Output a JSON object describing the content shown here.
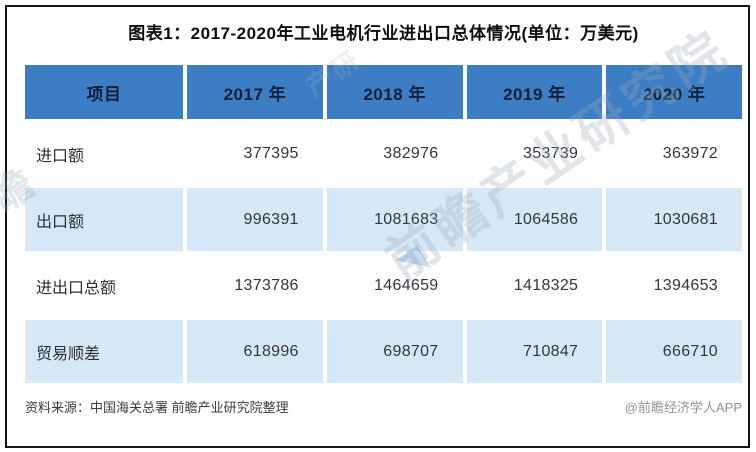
{
  "title": "图表1：2017-2020年工业电机行业进出口总体情况(单位：万美元)",
  "table": {
    "headers": [
      "项目",
      "2017 年",
      "2018 年",
      "2019 年",
      "2020 年"
    ],
    "rows": [
      {
        "label": "进口额",
        "values": [
          "377395",
          "382976",
          "353739",
          "363972"
        ]
      },
      {
        "label": "出口额",
        "values": [
          "996391",
          "1081683",
          "1064586",
          "1030681"
        ]
      },
      {
        "label": "进出口总额",
        "values": [
          "1373786",
          "1464659",
          "1418325",
          "1394653"
        ]
      },
      {
        "label": "贸易顺差",
        "values": [
          "618996",
          "698707",
          "710847",
          "666710"
        ]
      }
    ]
  },
  "footer": {
    "source": "资料来源：中国海关总署 前瞻产业研究院整理",
    "credit": "@前瞻经济学人APP"
  },
  "watermark": {
    "main_text": "前瞻产业研究院",
    "edge_fragment": "瞻",
    "top_fragment": "产研",
    "logo_glyph": "◥"
  },
  "colors": {
    "header_bg": "#3d7dc4",
    "header_text": "#13203a",
    "alt_row_bg": "#d6e8f6",
    "body_text": "#32363d",
    "title_text": "#0d0d0d",
    "source_text": "#3c3c3c",
    "credit_text": "#8f9399",
    "frame_border": "#141414",
    "watermark": "#9ca8b7"
  },
  "chart_data": {
    "type": "table",
    "title": "图表1：2017-2020年工业电机行业进出口总体情况(单位：万美元)",
    "unit": "万美元",
    "categories": [
      "2017年",
      "2018年",
      "2019年",
      "2020年"
    ],
    "row_header_label": "项目",
    "series": [
      {
        "name": "进口额",
        "values": [
          377395,
          382976,
          353739,
          363972
        ]
      },
      {
        "name": "出口额",
        "values": [
          996391,
          1081683,
          1064586,
          1030681
        ]
      },
      {
        "name": "进出口总额",
        "values": [
          1373786,
          1464659,
          1418325,
          1394653
        ]
      },
      {
        "name": "贸易顺差",
        "values": [
          618996,
          698707,
          710847,
          666710
        ]
      }
    ],
    "source": "中国海关总署 前瞻产业研究院整理",
    "credit": "@前瞻经济学人APP"
  }
}
